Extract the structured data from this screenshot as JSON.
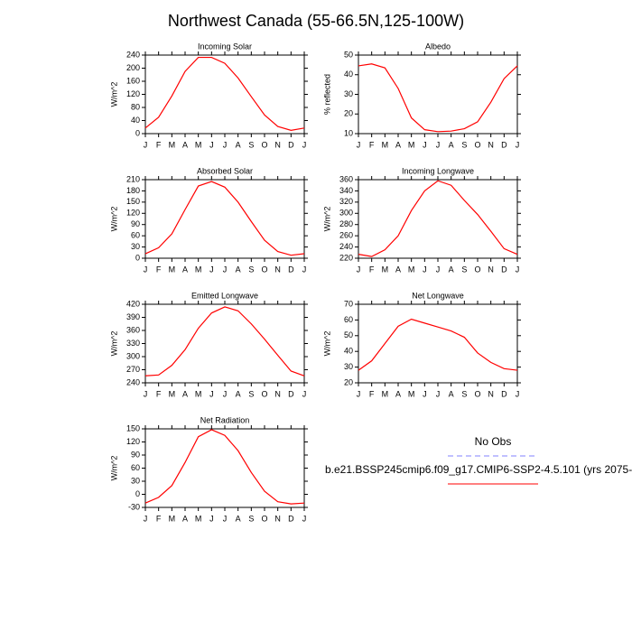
{
  "title": "Northwest Canada (55-66.5N,125-100W)",
  "legend": [
    {
      "name": "No Obs",
      "color": "#8080ff",
      "dashed": true
    },
    {
      "name": "b.e21.BSSP245cmip6.f09_g17.CMIP6-SSP2-4.5.101 (yrs 2075-",
      "color": "#ff0000",
      "dashed": false
    }
  ],
  "chart_data": [
    {
      "type": "line",
      "title": "Incoming Solar",
      "y_label": "W/m^2",
      "color": "#ff0000",
      "categories": [
        "J",
        "F",
        "M",
        "A",
        "M",
        "J",
        "J",
        "A",
        "S",
        "O",
        "N",
        "D",
        "J"
      ],
      "values": [
        17,
        50,
        115,
        190,
        233,
        233,
        215,
        170,
        113,
        57,
        22,
        10,
        17
      ],
      "ylim": [
        0,
        240
      ],
      "yticks": [
        0,
        40,
        80,
        120,
        160,
        200,
        240
      ]
    },
    {
      "type": "line",
      "title": "Albedo",
      "y_label": "% reflected",
      "color": "#ff0000",
      "categories": [
        "J",
        "F",
        "M",
        "A",
        "M",
        "J",
        "J",
        "A",
        "S",
        "O",
        "N",
        "D",
        "J"
      ],
      "values": [
        44.5,
        45.5,
        43.5,
        33,
        18,
        12,
        11,
        11.3,
        12.5,
        16,
        26,
        38,
        44.5
      ],
      "ylim": [
        10,
        50
      ],
      "yticks": [
        10,
        20,
        30,
        40,
        50
      ]
    },
    {
      "type": "line",
      "title": "Absorbed Solar",
      "y_label": "W/m^2",
      "color": "#ff0000",
      "categories": [
        "J",
        "F",
        "M",
        "A",
        "M",
        "J",
        "J",
        "A",
        "S",
        "O",
        "N",
        "D",
        "J"
      ],
      "values": [
        12,
        28,
        65,
        130,
        193,
        205,
        190,
        150,
        98,
        48,
        18,
        8,
        12
      ],
      "ylim": [
        0,
        210
      ],
      "yticks": [
        0,
        30,
        60,
        90,
        120,
        150,
        180,
        210
      ]
    },
    {
      "type": "line",
      "title": "Incoming Longwave",
      "y_label": "W/m^2",
      "color": "#ff0000",
      "categories": [
        "J",
        "F",
        "M",
        "A",
        "M",
        "J",
        "J",
        "A",
        "S",
        "O",
        "N",
        "D",
        "J"
      ],
      "values": [
        227,
        223,
        235,
        260,
        305,
        340,
        358,
        350,
        323,
        298,
        268,
        237,
        227
      ],
      "ylim": [
        220,
        360
      ],
      "yticks": [
        220,
        240,
        260,
        280,
        300,
        320,
        340,
        360
      ]
    },
    {
      "type": "line",
      "title": "Emitted Longwave",
      "y_label": "W/m^2",
      "color": "#ff0000",
      "categories": [
        "J",
        "F",
        "M",
        "A",
        "M",
        "J",
        "J",
        "A",
        "S",
        "O",
        "N",
        "D",
        "J"
      ],
      "values": [
        256,
        258,
        280,
        316,
        365,
        400,
        414,
        405,
        375,
        340,
        303,
        267,
        256
      ],
      "ylim": [
        240,
        420
      ],
      "yticks": [
        240,
        270,
        300,
        330,
        360,
        390,
        420
      ]
    },
    {
      "type": "line",
      "title": "Net Longwave",
      "y_label": "W/m^2",
      "color": "#ff0000",
      "categories": [
        "J",
        "F",
        "M",
        "A",
        "M",
        "J",
        "J",
        "A",
        "S",
        "O",
        "N",
        "D",
        "J"
      ],
      "values": [
        28,
        34,
        45,
        56,
        60.5,
        58,
        55.5,
        53,
        49,
        39,
        33,
        29,
        28
      ],
      "ylim": [
        20,
        70
      ],
      "yticks": [
        20,
        30,
        40,
        50,
        60,
        70
      ]
    },
    {
      "type": "line",
      "title": "Net Radiation",
      "y_label": "W/m^2",
      "color": "#ff0000",
      "categories": [
        "J",
        "F",
        "M",
        "A",
        "M",
        "J",
        "J",
        "A",
        "S",
        "O",
        "N",
        "D",
        "J"
      ],
      "values": [
        -20,
        -7,
        20,
        73,
        132,
        148,
        135,
        100,
        50,
        7,
        -17,
        -22,
        -20
      ],
      "ylim": [
        -30,
        150
      ],
      "yticks": [
        -30,
        0,
        30,
        60,
        90,
        120,
        150
      ]
    }
  ]
}
